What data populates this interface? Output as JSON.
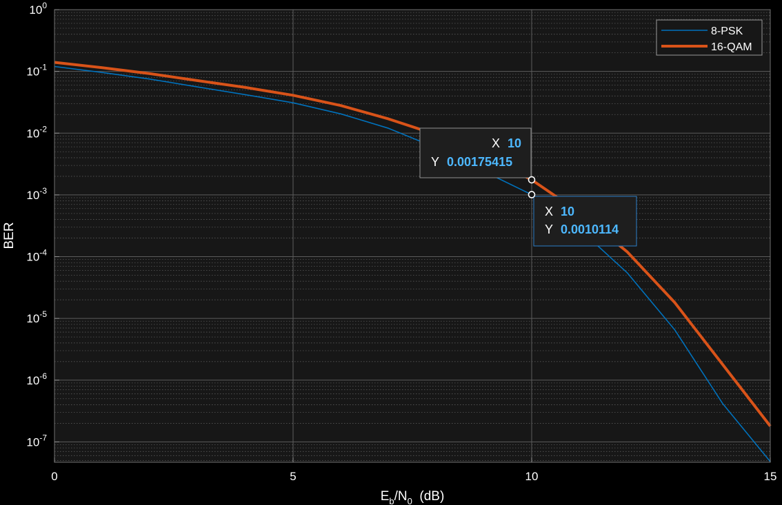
{
  "chart_data": {
    "type": "line",
    "title": "",
    "xlabel": {
      "main": "E",
      "sub1": "b",
      "mid": "/N",
      "sub2": "0",
      "unit": "  (dB)"
    },
    "ylabel": "BER",
    "xlim": [
      0,
      15
    ],
    "ylim_exponents": [
      -7.33,
      0
    ],
    "y_scale": "log",
    "grid": true,
    "minor_grid": true,
    "x_ticks": [
      0,
      5,
      10,
      15
    ],
    "x_tick_labels": [
      "0",
      "5",
      "10",
      "15"
    ],
    "y_tick_exponents": [
      0,
      -1,
      -2,
      -3,
      -4,
      -5,
      -6,
      -7
    ],
    "y_tick_base": "10",
    "y_tick_exp_labels": [
      "0",
      "-1",
      "-2",
      "-3",
      "-4",
      "-5",
      "-6",
      "-7"
    ],
    "legend_position": "top-right",
    "series": [
      {
        "name": "8-PSK",
        "color": "#0072BD",
        "x": [
          0,
          1,
          2,
          3,
          4,
          5,
          6,
          7,
          8,
          9,
          10,
          11,
          12,
          13,
          14,
          15
        ],
        "y": [
          0.12,
          0.096,
          0.075,
          0.056,
          0.042,
          0.031,
          0.0205,
          0.012,
          0.0058,
          0.0024,
          0.0010114,
          0.00028,
          5.5e-05,
          6.5e-06,
          4.2e-07,
          4.8e-08
        ]
      },
      {
        "name": "16-QAM",
        "color": "#D95319",
        "x": [
          0,
          1,
          2,
          3,
          4,
          5,
          6,
          7,
          8,
          9,
          10,
          11,
          12,
          13,
          14,
          15
        ],
        "y": [
          0.14,
          0.115,
          0.092,
          0.071,
          0.055,
          0.041,
          0.028,
          0.017,
          0.0095,
          0.0044,
          0.00175415,
          0.00052,
          0.00012,
          1.8e-05,
          1.8e-06,
          1.8e-07
        ]
      }
    ],
    "datatips": [
      {
        "series": "16-QAM",
        "x_label": "X",
        "y_label": "Y",
        "x": "10",
        "y": "0.00175415",
        "x_value": 10,
        "y_value": 0.00175415
      },
      {
        "series": "8-PSK",
        "x_label": "X",
        "y_label": "Y",
        "x": "10",
        "y": "0.0010114",
        "x_value": 10,
        "y_value": 0.0010114
      }
    ]
  }
}
